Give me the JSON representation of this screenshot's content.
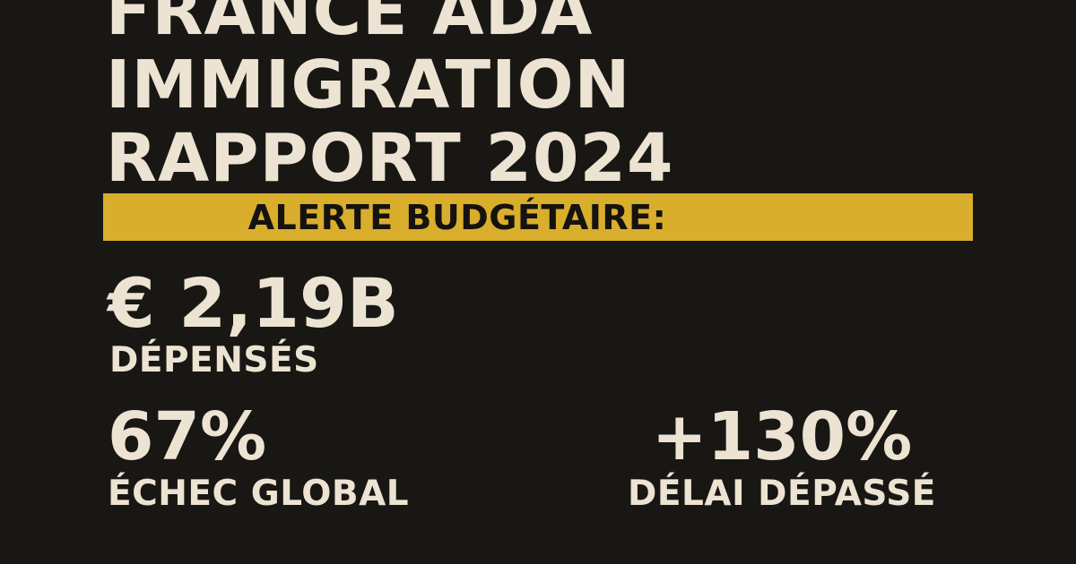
{
  "title": {
    "line1": "FRANCE ADA",
    "line2": "IMMIGRATION",
    "line3": "RAPPORT 2024"
  },
  "alert": {
    "label": "ALERTE BUDGÉTAIRE:"
  },
  "stats": {
    "spent": {
      "value": "€ 2,19B",
      "label": "DÉPENSÉS"
    },
    "failure": {
      "value": "67%",
      "label": "ÉCHEC GLOBAL"
    },
    "delay": {
      "value": "+130%",
      "label": "DÉLAI DÉPASSÉ"
    }
  },
  "colors": {
    "background": "#181714",
    "text": "#ECE3D2",
    "banner": "#D9AE2C",
    "banner_text": "#15130F"
  }
}
